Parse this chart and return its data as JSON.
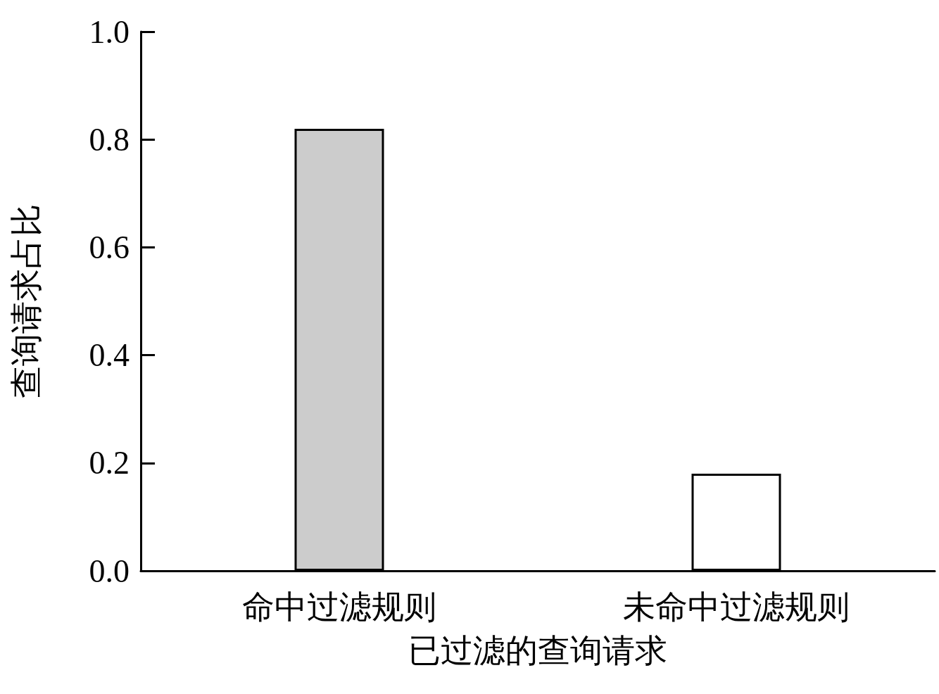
{
  "chart_data": {
    "type": "bar",
    "xlabel": "已过滤的查询请求",
    "ylabel": "查询请求占比",
    "categories": [
      "命中过滤规则",
      "未命中过滤规则"
    ],
    "values": [
      0.82,
      0.18
    ],
    "colors": [
      "#cccccc",
      "#ffffff"
    ],
    "ylim": [
      0,
      1
    ],
    "yticks": [
      {
        "value": 0,
        "label": "0.0"
      },
      {
        "value": 0.2,
        "label": "0.2"
      },
      {
        "value": 0.4,
        "label": "0.4"
      },
      {
        "value": 0.6,
        "label": "0.6"
      },
      {
        "value": 0.8,
        "label": "0.8"
      },
      {
        "value": 1,
        "label": "1.0"
      }
    ],
    "grid": false
  }
}
